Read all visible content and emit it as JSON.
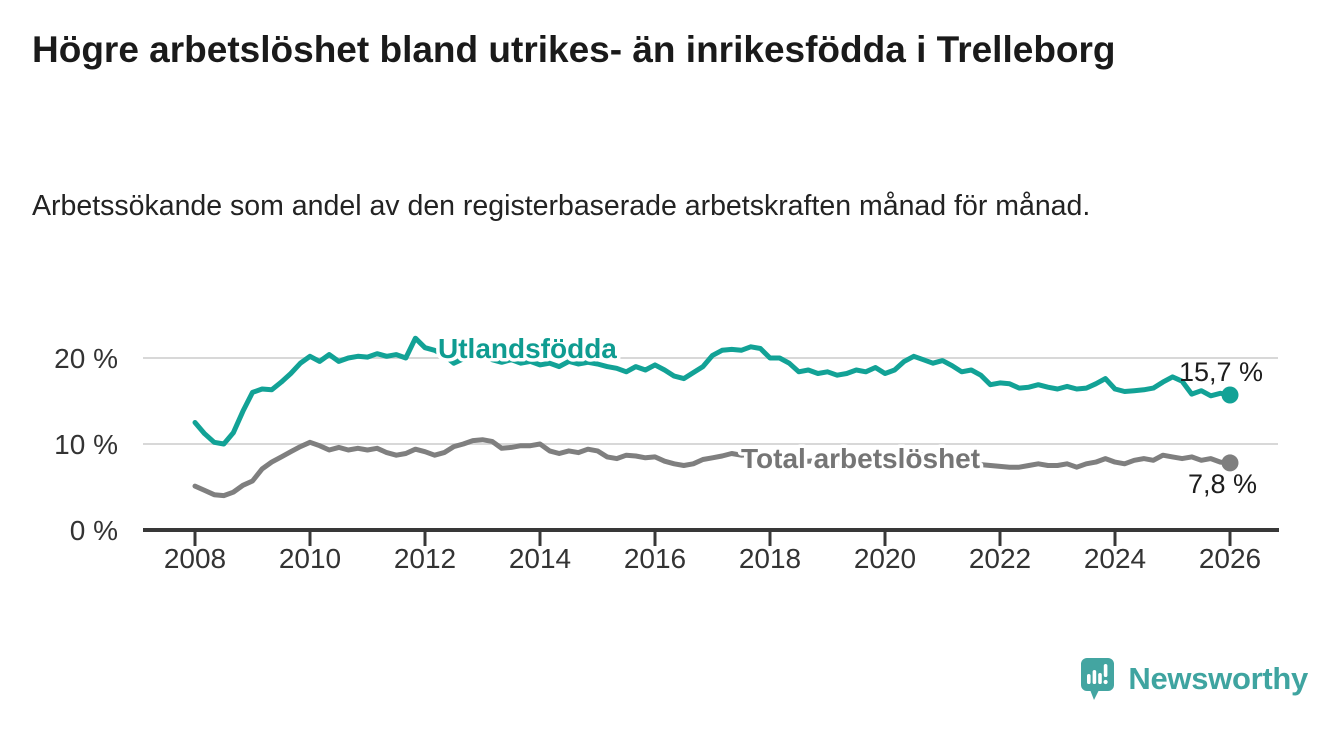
{
  "header": {
    "title": "Högre arbetslöshet bland utrikes- än inrikesfödda i Trelleborg",
    "subtitle": "Arbetssökande som andel av den registerbaserade arbetskraften månad för månad."
  },
  "chart_data": {
    "type": "line",
    "unit": "%",
    "x_start_year": 2008,
    "x_end_year": 2026,
    "points_per_year": 6,
    "x_axis": {
      "tick_years": [
        2008,
        2010,
        2012,
        2014,
        2016,
        2018,
        2020,
        2022,
        2024,
        2026
      ],
      "tick_labels": [
        "2008",
        "2010",
        "2012",
        "2014",
        "2016",
        "2018",
        "2020",
        "2022",
        "2024",
        "2026"
      ]
    },
    "y_axis": {
      "range": [
        0,
        23
      ],
      "ticks": [
        {
          "value": 20,
          "label": "20 %"
        },
        {
          "value": 10,
          "label": "10 %"
        },
        {
          "value": 0,
          "label": "0 %"
        }
      ],
      "gridline_values": [
        20,
        10
      ]
    },
    "series": [
      {
        "name": "Utlandsfödda",
        "color": "#12a296",
        "label_color": "#0f9c91",
        "end_value": 15.7,
        "end_label": "15,7 %",
        "values": [
          12.5,
          11.2,
          10.2,
          10.0,
          11.3,
          13.8,
          16.0,
          16.4,
          16.3,
          17.2,
          18.2,
          19.4,
          20.2,
          19.6,
          20.4,
          19.6,
          20.0,
          20.2,
          20.1,
          20.5,
          20.2,
          20.4,
          20.0,
          22.3,
          21.2,
          20.9,
          20.3,
          19.4,
          19.9,
          20.1,
          20.2,
          19.8,
          19.5,
          19.8,
          19.4,
          19.6,
          19.2,
          19.4,
          19.0,
          19.6,
          19.3,
          19.5,
          19.3,
          19.0,
          18.8,
          18.4,
          19.0,
          18.6,
          19.2,
          18.6,
          17.9,
          17.6,
          18.3,
          19.0,
          20.3,
          20.9,
          21.0,
          20.9,
          21.3,
          21.1,
          20.0,
          20.0,
          19.4,
          18.4,
          18.6,
          18.2,
          18.4,
          18.0,
          18.2,
          18.6,
          18.4,
          18.9,
          18.2,
          18.6,
          19.6,
          20.2,
          19.8,
          19.4,
          19.7,
          19.1,
          18.4,
          18.6,
          18.0,
          16.9,
          17.1,
          17.0,
          16.5,
          16.6,
          16.9,
          16.6,
          16.4,
          16.7,
          16.4,
          16.5,
          17.0,
          17.6,
          16.4,
          16.1,
          16.2,
          16.3,
          16.5,
          17.2,
          17.8,
          17.3,
          15.8,
          16.2,
          15.6,
          15.9,
          15.7
        ]
      },
      {
        "name": "Total arbetslöshet",
        "color": "#7f7f7f",
        "label_color": "#757575",
        "end_value": 7.8,
        "end_label": "7,8 %",
        "values": [
          5.1,
          4.6,
          4.1,
          4.0,
          4.4,
          5.2,
          5.7,
          7.1,
          7.9,
          8.5,
          9.1,
          9.7,
          10.2,
          9.8,
          9.3,
          9.6,
          9.3,
          9.5,
          9.3,
          9.5,
          9.0,
          8.7,
          8.9,
          9.4,
          9.1,
          8.7,
          9.0,
          9.7,
          10.0,
          10.4,
          10.5,
          10.3,
          9.5,
          9.6,
          9.8,
          9.8,
          10.0,
          9.2,
          8.9,
          9.2,
          9.0,
          9.4,
          9.2,
          8.5,
          8.3,
          8.7,
          8.6,
          8.4,
          8.5,
          8.0,
          7.7,
          7.5,
          7.7,
          8.2,
          8.4,
          8.6,
          8.9,
          8.7,
          8.8,
          8.6,
          8.5,
          8.3,
          8.2,
          8.1,
          8.0,
          8.1,
          7.9,
          7.8,
          7.9,
          7.8,
          7.9,
          8.0,
          8.1,
          8.4,
          8.8,
          8.9,
          8.7,
          8.5,
          8.4,
          8.2,
          8.0,
          7.8,
          7.6,
          7.5,
          7.4,
          7.3,
          7.3,
          7.5,
          7.7,
          7.5,
          7.5,
          7.7,
          7.3,
          7.7,
          7.9,
          8.3,
          7.9,
          7.7,
          8.1,
          8.3,
          8.1,
          8.7,
          8.5,
          8.3,
          8.5,
          8.1,
          8.3,
          7.9,
          7.8
        ]
      }
    ],
    "colors": {
      "gridline": "#d8d8d8",
      "axis": "#383838",
      "tick_text": "#333333",
      "end_label_text": "#1d1d1d"
    }
  },
  "branding": {
    "logo_text": "Newsworthy",
    "logo_color": "#3fa4a0"
  }
}
